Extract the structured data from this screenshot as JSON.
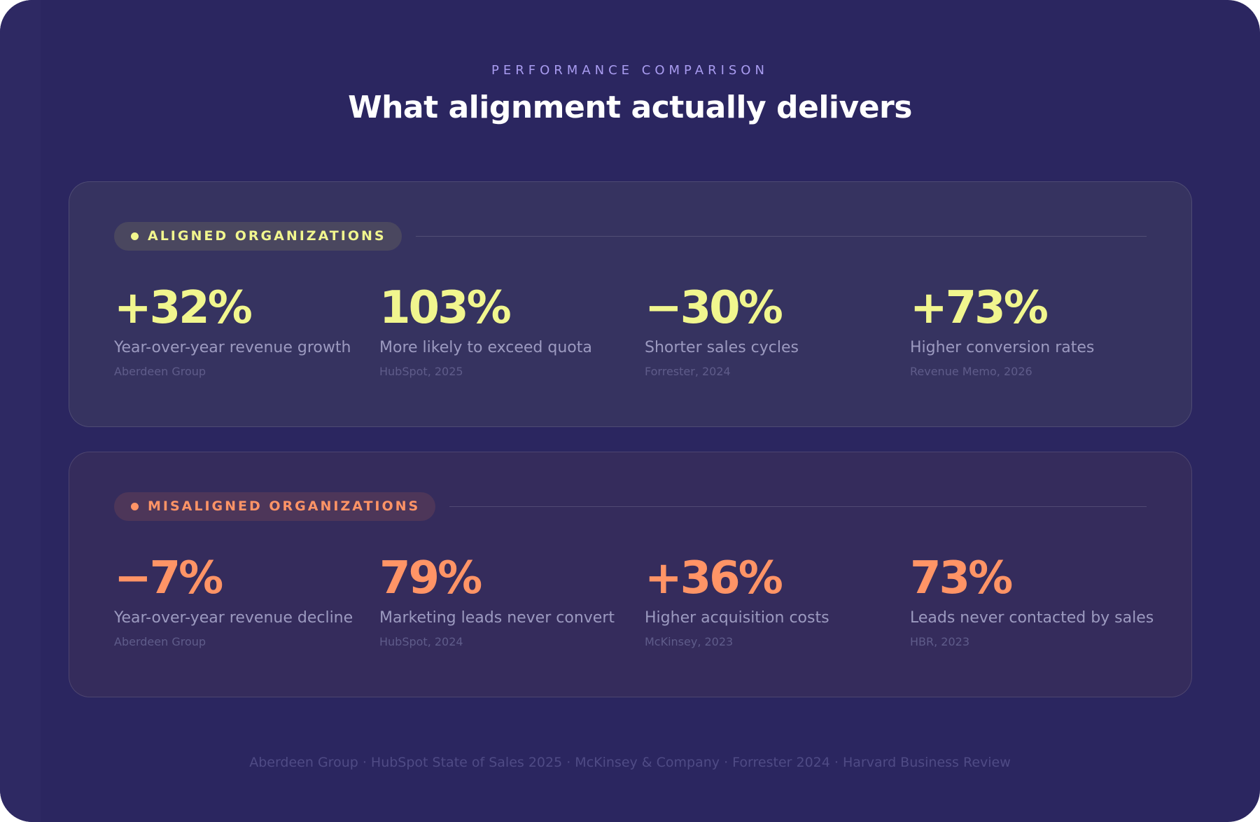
{
  "header": {
    "eyebrow": "PERFORMANCE COMPARISON",
    "title": "What alignment actually delivers"
  },
  "groups": [
    {
      "label": "ALIGNED ORGANIZATIONS",
      "stats": [
        {
          "value": "+32%",
          "label": "Year-over-year revenue growth",
          "source": "Aberdeen Group"
        },
        {
          "value": "103%",
          "label": "More likely to exceed quota",
          "source": "HubSpot, 2025"
        },
        {
          "value": "−30%",
          "label": "Shorter sales cycles",
          "source": "Forrester, 2024"
        },
        {
          "value": "+73%",
          "label": "Higher conversion rates",
          "source": "Revenue Memo, 2026"
        }
      ]
    },
    {
      "label": "MISALIGNED ORGANIZATIONS",
      "stats": [
        {
          "value": "−7%",
          "label": "Year-over-year revenue decline",
          "source": "Aberdeen Group"
        },
        {
          "value": "79%",
          "label": "Marketing leads never convert",
          "source": "HubSpot, 2024"
        },
        {
          "value": "+36%",
          "label": "Higher acquisition costs",
          "source": "McKinsey, 2023"
        },
        {
          "value": "73%",
          "label": "Leads never contacted by sales",
          "source": "HBR, 2023"
        }
      ]
    }
  ],
  "footer": "Aberdeen Group · HubSpot State of Sales 2025 · McKinsey & Company · Forrester 2024 · Harvard Business Review"
}
